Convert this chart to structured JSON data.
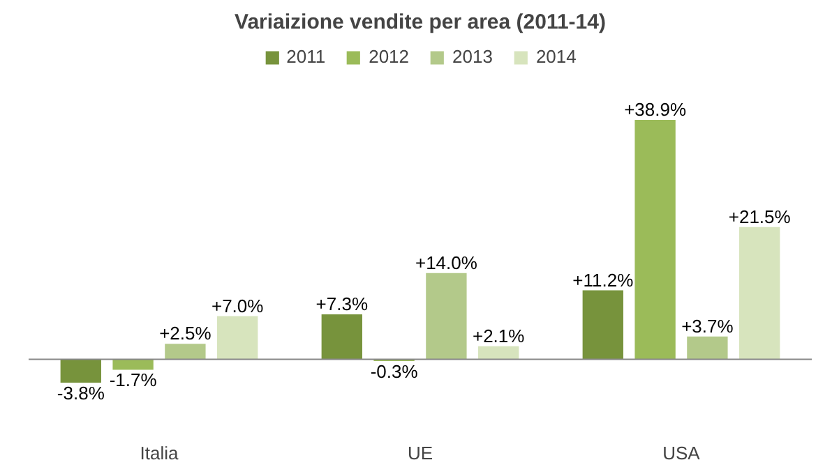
{
  "chart_data": {
    "type": "bar",
    "title": "Variaizione vendite per area (2011-14)",
    "categories": [
      "Italia",
      "UE",
      "USA"
    ],
    "legend": "top",
    "series": [
      {
        "name": "2011",
        "color": "#77933c",
        "values": [
          -3.8,
          7.3,
          11.2
        ],
        "value_labels": [
          "-3.8%",
          "+7.3%",
          "+11.2%"
        ]
      },
      {
        "name": "2012",
        "color": "#9bbb59",
        "values": [
          -1.7,
          -0.3,
          38.9
        ],
        "value_labels": [
          "-1.7%",
          "-0.3%",
          "+38.9%"
        ]
      },
      {
        "name": "2013",
        "color": "#b3c98a",
        "values": [
          2.5,
          14.0,
          3.7
        ],
        "value_labels": [
          "+2.5%",
          "+14.0%",
          "+3.7%"
        ]
      },
      {
        "name": "2014",
        "color": "#d7e4bd",
        "values": [
          7.0,
          2.1,
          21.5
        ],
        "value_labels": [
          "+7.0%",
          "+2.1%",
          "+21.5%"
        ]
      }
    ]
  }
}
